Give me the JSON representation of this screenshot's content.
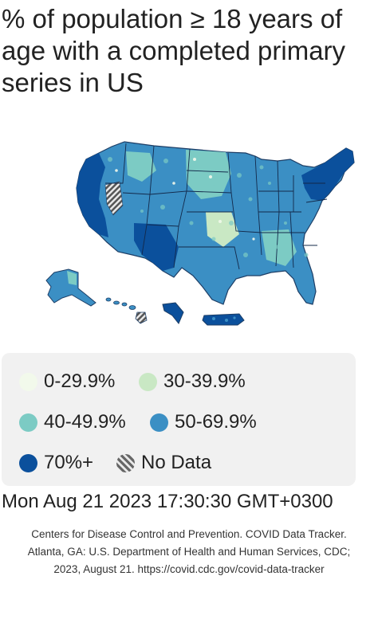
{
  "title": "% of population ≥ 18 years of age with a completed primary series in US",
  "legend": {
    "items": [
      {
        "label": "0-29.9%",
        "color": "#f2f9eb"
      },
      {
        "label": "30-39.9%",
        "color": "#c9e8c4"
      },
      {
        "label": "40-49.9%",
        "color": "#7ccbc4"
      },
      {
        "label": "50-69.9%",
        "color": "#3b8fc4"
      },
      {
        "label": "70%+",
        "color": "#0b509c"
      },
      {
        "label": "No Data",
        "color": "hatch"
      }
    ]
  },
  "timestamp": "Mon Aug 21 2023 17:30:30 GMT+0300",
  "citation": {
    "line1": "Centers for Disease Control and Prevention. COVID Data Tracker.",
    "line2": "Atlanta, GA: U.S. Department of Health and Human Services, CDC;",
    "line3": "2023, August 21. https://covid.cdc.gov/covid-data-tracker"
  }
}
